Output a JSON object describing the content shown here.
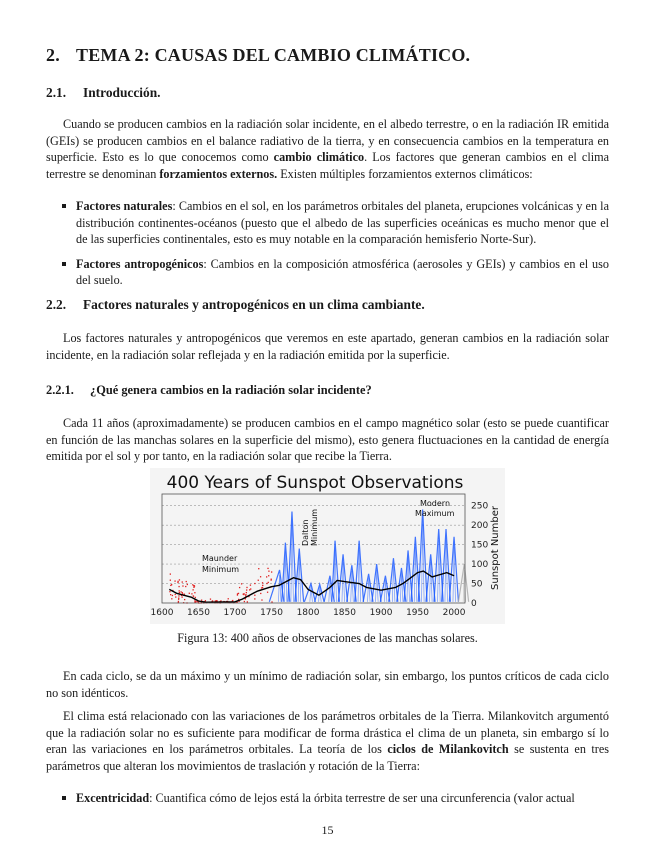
{
  "section": {
    "number": "2.",
    "title": "TEMA 2: CAUSAS DEL CAMBIO CLIMÁTICO."
  },
  "s21": {
    "number": "2.1.",
    "title": "Introducción.",
    "para": {
      "t1": "Cuando se producen cambios en la radiación solar incidente, en el albedo terrestre, o en la radiación IR emitida (GEIs) se producen cambios en el balance radiativo de la tierra, y en consecuencia cambios en la temperatura en superficie. Esto es lo que conocemos como ",
      "b1": "cambio climático",
      "t2": ". Los factores que generan cambios en el clima terrestre se denominan ",
      "b2": "forzamientos externos.",
      "t3": " Existen múltiples forzamientos externos climáticos:"
    },
    "bullets": [
      {
        "bold": "Factores naturales",
        "text": ": Cambios en el sol, en los parámetros orbitales del planeta, erupciones volcánicas y en la distribución continentes-océanos (puesto que el albedo de las superficies oceánicas es mucho menor que el de las superficies continentales, esto es muy notable en la comparación hemisferio Norte-Sur)."
      },
      {
        "bold": "Factores antropogénicos",
        "text": ": Cambios en la composición atmosférica (aerosoles y GEIs) y cambios en el uso del suelo."
      }
    ]
  },
  "s22": {
    "number": "2.2.",
    "title": "Factores naturales y antropogénicos en un clima cambiante.",
    "para": "Los factores naturales y antropogénicos que veremos en este apartado, generan cambios en la radiación solar incidente, en la radiación solar reflejada y en la radiación emitida por la superficie."
  },
  "s221": {
    "number": "2.2.1.",
    "title": "¿Qué genera cambios en la radiación solar incidente?",
    "para": "Cada 11 años (aproximadamente) se producen cambios en el campo magnético solar (esto se puede cuantificar en función de las manchas solares en la superficie del mismo), esto genera fluctuaciones en la cantidad de energía emitida por el sol y por tanto, en la radiación solar que recibe la Tierra.",
    "caption": "Figura 13: 400 años de observaciones de las manchas solares.",
    "para2": "En cada ciclo, se da un máximo y un mínimo de radiación solar, sin embargo, los puntos críticos de cada ciclo no son idénticos.",
    "para3": {
      "t1": "El clima está relacionado con las variaciones de los parámetros orbitales de la Tierra. Milankovitch argumentó que la radiación solar no es suficiente para modificar de forma drástica el clima de un planeta, sin embargo sí lo eran las variaciones en los parámetros orbitales. La teoría de los ",
      "b1": "ciclos de Milankovitch",
      "t2": " se sustenta en tres parámetros que alteran los movimientos de traslación y rotación de la Tierra:"
    },
    "bullet": {
      "bold": "Excentricidad",
      "text": ": Cuantifica cómo de lejos está la órbita terrestre de ser una circunferencia (valor actual"
    }
  },
  "chart_data": {
    "type": "line",
    "title": "400 Years of Sunspot Observations",
    "ylabel": "Sunspot Number",
    "xlim": [
      1600,
      2015
    ],
    "ylim": [
      0,
      280
    ],
    "xticks": [
      "1600",
      "1650",
      "1700",
      "1750",
      "1800",
      "1850",
      "1900",
      "1950",
      "2000"
    ],
    "yticks": [
      "0",
      "50",
      "100",
      "150",
      "200",
      "250"
    ],
    "annotations": [
      "Maunder Minimum",
      "Dalton Minimum",
      "Modern Maximum"
    ],
    "grid": true,
    "colors": {
      "early": "#e02020",
      "cycles": "#1f5cff",
      "smooth": "#000000"
    },
    "smoothed": {
      "x": [
        1610,
        1620,
        1640,
        1650,
        1660,
        1700,
        1710,
        1730,
        1750,
        1760,
        1780,
        1790,
        1800,
        1815,
        1830,
        1840,
        1850,
        1870,
        1880,
        1900,
        1920,
        1930,
        1950,
        1958,
        1970,
        1990,
        2000
      ],
      "y": [
        35,
        25,
        15,
        5,
        2,
        3,
        10,
        30,
        42,
        45,
        65,
        60,
        35,
        20,
        40,
        58,
        55,
        50,
        40,
        33,
        40,
        50,
        78,
        82,
        67,
        78,
        70
      ]
    },
    "cycle_peaks": {
      "x": [
        1761,
        1769,
        1778,
        1788,
        1804,
        1816,
        1830,
        1837,
        1848,
        1860,
        1870,
        1883,
        1894,
        1906,
        1917,
        1928,
        1937,
        1947,
        1957,
        1968,
        1979,
        1989,
        2000,
        2014
      ],
      "y": [
        85,
        155,
        235,
        140,
        50,
        48,
        70,
        160,
        125,
        97,
        160,
        75,
        100,
        70,
        115,
        90,
        135,
        170,
        240,
        125,
        190,
        190,
        170,
        100
      ]
    }
  },
  "page_number": "15"
}
